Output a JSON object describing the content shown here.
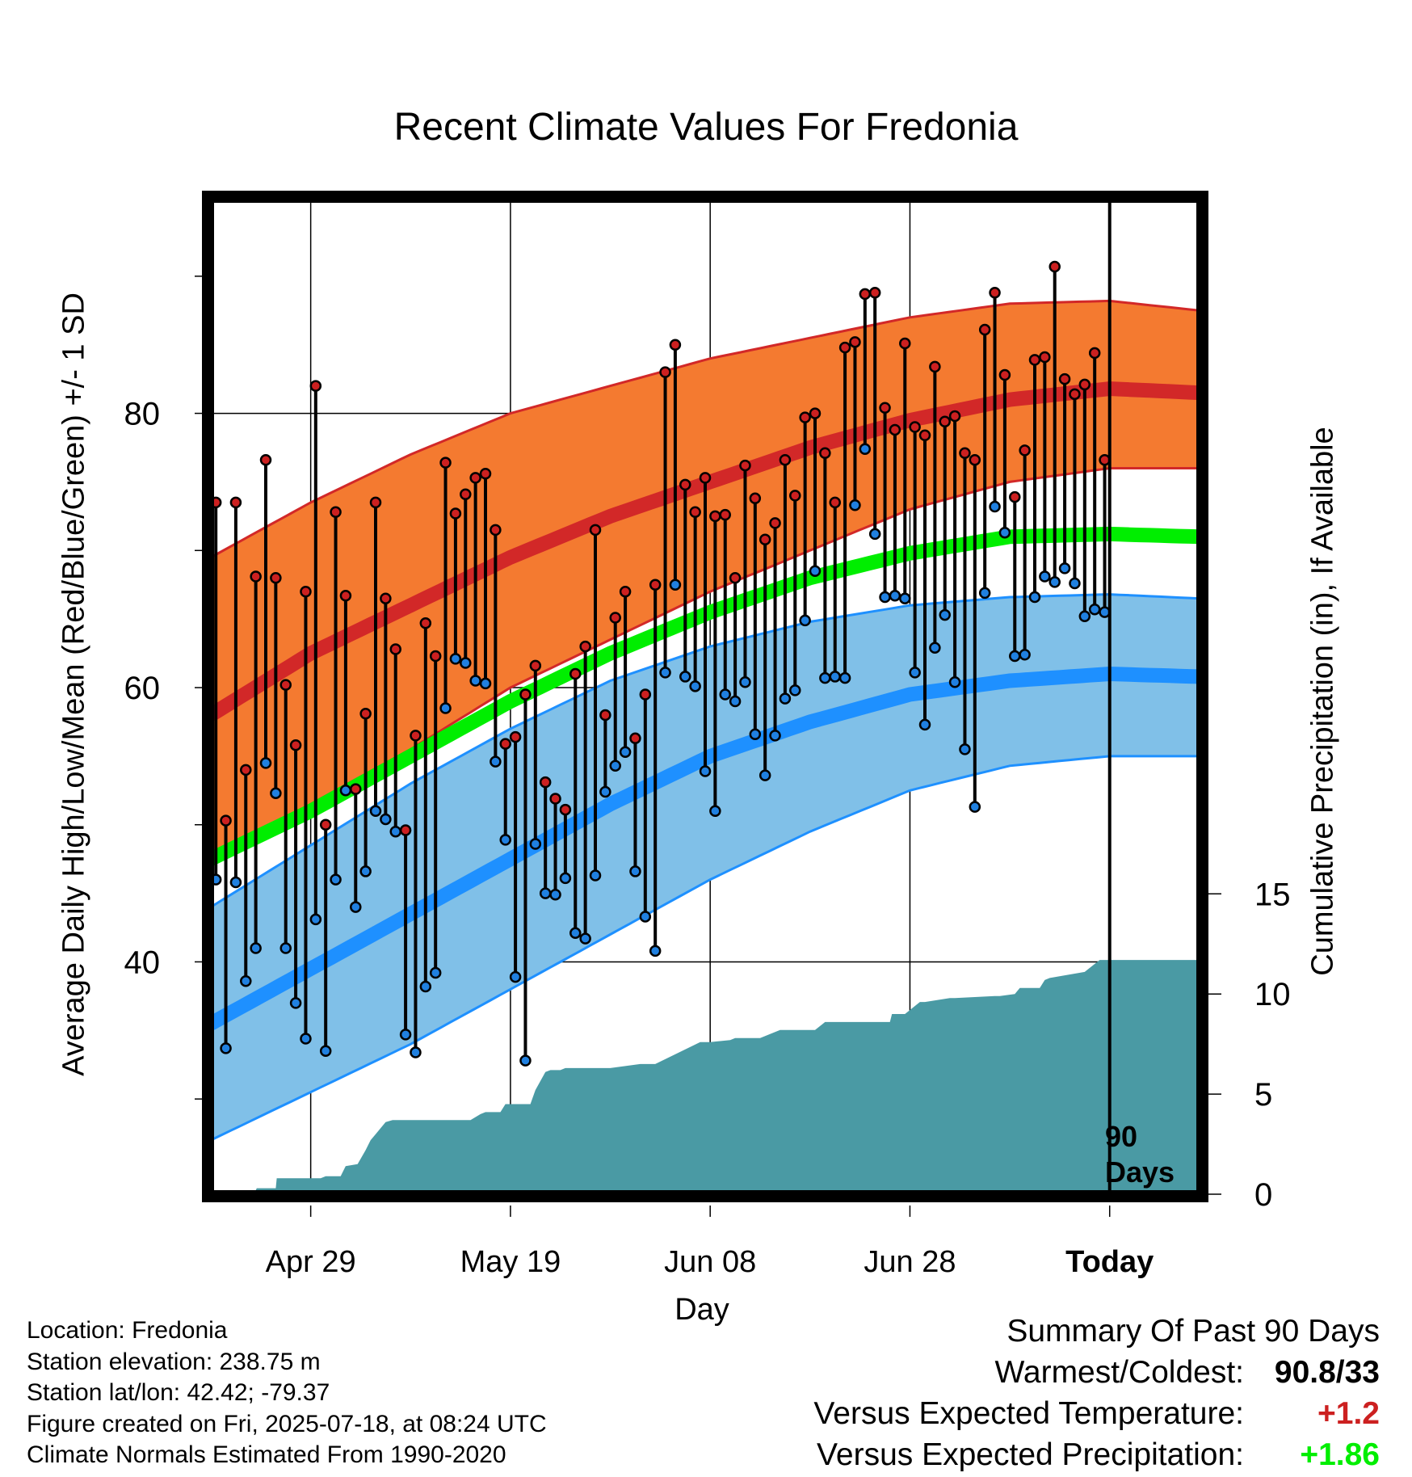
{
  "title": "Recent Climate Values For Fredonia",
  "axis": {
    "y_left_label": "Average Daily High/Low/Mean (Red/Blue/Green) +/- 1 SD",
    "y_right_label": "Cumulative Precipitation (in), If Available",
    "x_label": "Day",
    "y_left_ticks": [
      "40",
      "60",
      "80"
    ],
    "y_right_ticks": [
      "0",
      "5",
      "10",
      "15"
    ],
    "x_ticks": [
      "Apr 29",
      "May 19",
      "Jun 08",
      "Jun 28",
      "Today"
    ]
  },
  "today_marker": {
    "line1": "90",
    "line2": "Days"
  },
  "meta": {
    "location": "Location: Fredonia",
    "elevation": "Station elevation: 238.75 m",
    "latlon": "Station lat/lon: 42.42; -79.37",
    "created": "Figure created on Fri, 2025-07-18, at 08:24 UTC",
    "normals": "Climate Normals Estimated From 1990-2020"
  },
  "summary": {
    "heading": "Summary Of Past 90 Days",
    "warmest_label": "Warmest/Coldest:",
    "warmest_value": "90.8/33",
    "temp_label": "Versus Expected Temperature:",
    "temp_value": "+1.2",
    "precip_label": "Versus Expected Precipitation:",
    "precip_value": "+1.86"
  },
  "colors": {
    "high_band": "#f47a30",
    "high_mean": "#d22828",
    "low_band": "#80c0e8",
    "low_mean": "#1e90ff",
    "daily_mean": "#00ee00",
    "precip": "#4a9aa4",
    "high_dot": "#cc2020",
    "low_dot": "#2080e0"
  },
  "chart_data": {
    "type": "line",
    "x_range_days": [
      -90,
      9
    ],
    "x_tick_days": [
      -80,
      -60,
      -40,
      -20,
      0
    ],
    "y_left_range": [
      24,
      95
    ],
    "y_right_range": [
      0,
      50
    ],
    "high_normal": {
      "days": [
        -90,
        -80,
        -70,
        -60,
        -50,
        -40,
        -30,
        -20,
        -10,
        0,
        9
      ],
      "mean": [
        58,
        62.5,
        66,
        69.5,
        72.5,
        75,
        77.5,
        79.5,
        81,
        81.8,
        81.5
      ],
      "upper": [
        69.5,
        73.5,
        77,
        80,
        82,
        84,
        85.5,
        87,
        88,
        88.2,
        87.5
      ],
      "lower": [
        47,
        51.5,
        55.5,
        60,
        63.5,
        67,
        70,
        73,
        75,
        76,
        76
      ]
    },
    "low_normal": {
      "days": [
        -90,
        -80,
        -70,
        -60,
        -50,
        -40,
        -30,
        -20,
        -10,
        0,
        9
      ],
      "mean": [
        35.5,
        39.5,
        43.5,
        47.5,
        51.5,
        55,
        57.5,
        59.5,
        60.5,
        61,
        60.8
      ],
      "upper": [
        44,
        48.5,
        53,
        57,
        60.5,
        63,
        64.8,
        66,
        66.6,
        66.8,
        66.5
      ],
      "lower": [
        27,
        30.5,
        34,
        38,
        42,
        46,
        49.5,
        52.5,
        54.3,
        55,
        55
      ]
    },
    "daily_mean_normal": {
      "days": [
        -90,
        -80,
        -70,
        -60,
        -50,
        -40,
        -30,
        -20,
        -10,
        0,
        9
      ],
      "values": [
        47.5,
        51,
        55,
        59,
        62.5,
        65.5,
        68,
        69.8,
        71,
        71.2,
        71
      ]
    },
    "daily_highs": [
      73.5,
      50.3,
      73.5,
      54,
      68.1,
      76.6,
      68,
      60.2,
      55.8,
      67,
      82,
      50,
      72.8,
      66.7,
      52.6,
      58.1,
      73.5,
      66.5,
      62.8,
      49.6,
      56.5,
      64.7,
      62.3,
      76.4,
      72.7,
      74.1,
      75.3,
      75.6,
      71.5,
      55.9,
      56.4,
      59.5,
      61.6,
      53.1,
      51.9,
      51.1,
      61,
      63,
      71.5,
      58,
      65.1,
      67,
      56.3,
      59.5,
      67.5,
      83,
      85,
      74.8,
      72.8,
      75.3,
      72.5,
      72.6,
      68,
      76.2,
      73.8,
      70.8,
      72,
      76.6,
      74,
      79.7,
      80,
      77.1,
      73.5,
      84.8,
      85.2,
      88.7,
      88.8,
      80.4,
      78.8,
      85.1,
      79,
      78.4,
      83.4,
      79.4,
      79.8,
      77.1,
      76.6,
      86.1,
      88.8,
      82.8,
      73.9,
      77.3,
      83.9,
      84.1,
      90.7,
      82.5,
      81.4,
      82.1,
      84.4,
      76.6
    ],
    "daily_lows": [
      46,
      33.7,
      45.8,
      38.6,
      41,
      54.5,
      52.3,
      41,
      37,
      34.4,
      43.1,
      33.5,
      46,
      52.5,
      44,
      46.6,
      51,
      50.4,
      49.5,
      34.7,
      33.4,
      38.2,
      39.2,
      58.5,
      62.1,
      61.8,
      60.5,
      60.3,
      54.6,
      48.9,
      38.9,
      32.8,
      48.6,
      45,
      44.9,
      46.1,
      42.1,
      41.7,
      46.3,
      52.4,
      54.3,
      55.3,
      46.6,
      43.3,
      40.8,
      61.1,
      67.5,
      60.8,
      60.1,
      53.9,
      51,
      59.5,
      59,
      60.4,
      56.6,
      53.6,
      56.5,
      59.2,
      59.8,
      64.9,
      68.5,
      60.7,
      60.8,
      60.7,
      73.3,
      77.4,
      71.2,
      66.6,
      66.7,
      66.5,
      61.1,
      57.3,
      62.9,
      65.3,
      60.4,
      55.5,
      51.3,
      66.9,
      73.2,
      71.3,
      62.3,
      62.4,
      66.6,
      68.1,
      67.7,
      68.7,
      67.6,
      65.2,
      65.7,
      65.5
    ],
    "precip_cumulative": {
      "days": [
        -90,
        -88.5,
        -88.4,
        -85.5,
        -85.4,
        -83.5,
        -83.4,
        -79,
        -78.5,
        -77,
        -76.5,
        -75.3,
        -74.5,
        -74,
        -73.5,
        -72.5,
        -71.8,
        -71,
        -64,
        -63,
        -62.5,
        -61,
        -60.5,
        -58,
        -57.5,
        -56.5,
        -56,
        -55,
        -54.5,
        -50,
        -47,
        -45.5,
        -41,
        -40,
        -38,
        -37.5,
        -35,
        -33,
        -29.5,
        -28.5,
        -22,
        -21.8,
        -20.5,
        -20,
        -19,
        -18.5,
        -16,
        -15.5,
        -11.5,
        -11,
        -9.5,
        -9,
        -7,
        -6.5,
        -6,
        -2.5,
        -1.5,
        -1,
        9
      ],
      "values": [
        0,
        0,
        0.2,
        0.2,
        0.3,
        0.3,
        0.8,
        0.8,
        0.9,
        0.9,
        1.4,
        1.5,
        2.2,
        2.7,
        3,
        3.6,
        3.7,
        3.7,
        3.7,
        4,
        4.1,
        4.1,
        4.5,
        4.5,
        5.2,
        6.1,
        6.2,
        6.2,
        6.3,
        6.3,
        6.5,
        6.5,
        7.6,
        7.6,
        7.7,
        7.8,
        7.8,
        8.2,
        8.2,
        8.6,
        8.6,
        9,
        9,
        9.2,
        9.6,
        9.6,
        9.8,
        9.8,
        9.9,
        9.9,
        10,
        10.3,
        10.3,
        10.7,
        10.8,
        11.1,
        11.5,
        11.7,
        11.7
      ]
    }
  }
}
